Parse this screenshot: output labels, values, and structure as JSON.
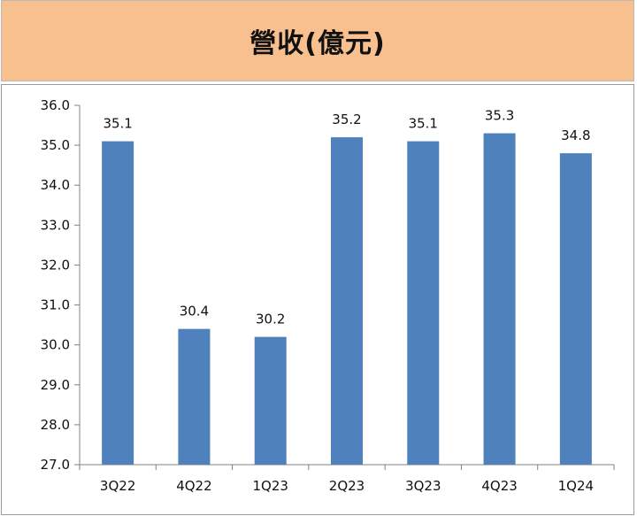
{
  "chart_data": {
    "type": "bar",
    "title": "營收(億元)",
    "categories": [
      "3Q22",
      "4Q22",
      "1Q23",
      "2Q23",
      "3Q23",
      "4Q23",
      "1Q24"
    ],
    "values": [
      35.1,
      30.4,
      30.2,
      35.2,
      35.1,
      35.3,
      34.8
    ],
    "data_labels": [
      "35.1",
      "30.4",
      "30.2",
      "35.2",
      "35.1",
      "35.3",
      "34.8"
    ],
    "yticks": [
      "27.0",
      "28.0",
      "29.0",
      "30.0",
      "31.0",
      "32.0",
      "33.0",
      "34.0",
      "35.0",
      "36.0"
    ],
    "ylim": [
      27.0,
      36.0
    ],
    "xlabel": "",
    "ylabel": "",
    "grid": false,
    "bar_color": "#4f81bd",
    "header_color": "#f9c08f"
  }
}
